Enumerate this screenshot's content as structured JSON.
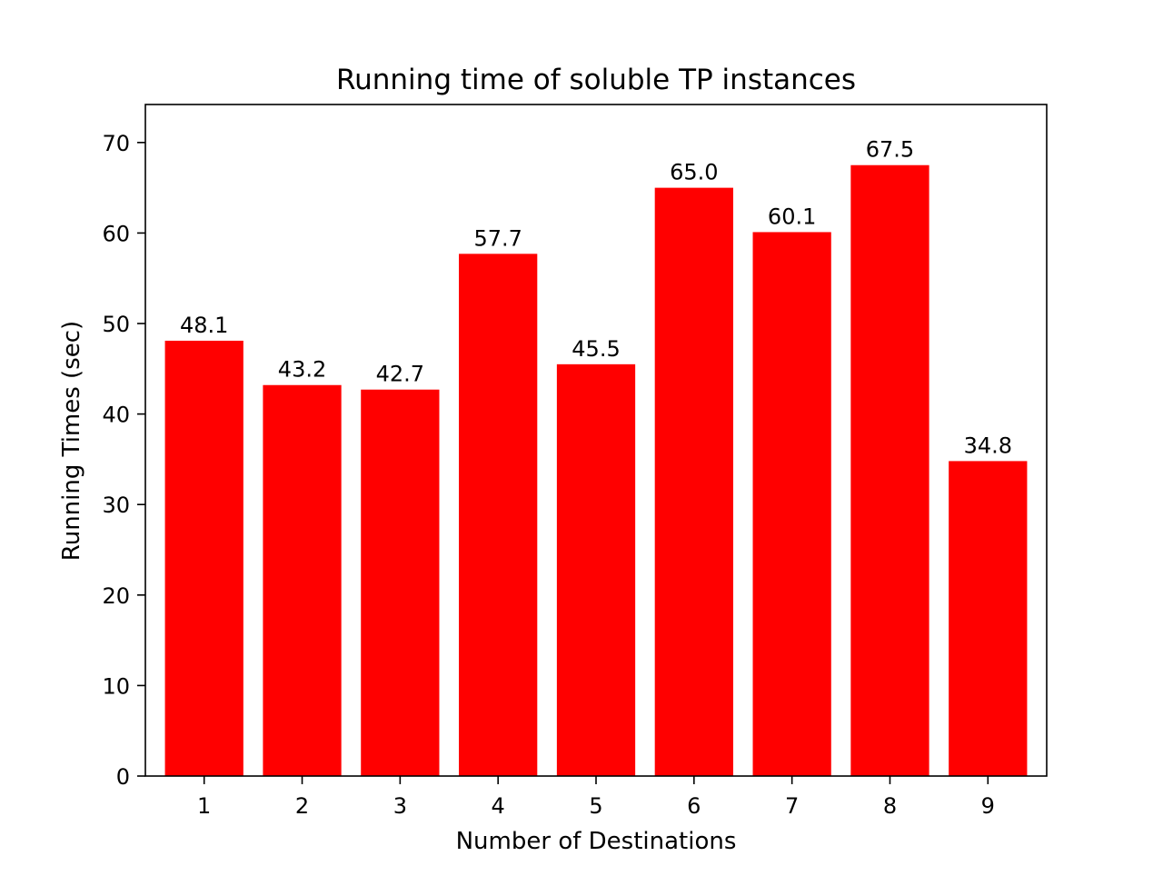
{
  "chart_data": {
    "type": "bar",
    "title": "Running time of soluble TP instances",
    "xlabel": "Number of Destinations",
    "ylabel": "Running Times (sec)",
    "categories": [
      "1",
      "2",
      "3",
      "4",
      "5",
      "6",
      "7",
      "8",
      "9"
    ],
    "values": [
      48.1,
      43.2,
      42.7,
      57.7,
      45.5,
      65.0,
      60.1,
      67.5,
      34.8
    ],
    "data_labels": [
      "48.1",
      "43.2",
      "42.7",
      "57.7",
      "45.5",
      "65.0",
      "60.1",
      "67.5",
      "34.8"
    ],
    "ylim": [
      0,
      74.2
    ],
    "yticks": [
      0,
      10,
      20,
      30,
      40,
      50,
      60,
      70
    ],
    "ytick_labels": [
      "0",
      "10",
      "20",
      "30",
      "40",
      "50",
      "60",
      "70"
    ],
    "xlim": [
      0.4,
      9.6
    ],
    "bar_color": "#ff0000",
    "grid": false,
    "legend": "none"
  }
}
